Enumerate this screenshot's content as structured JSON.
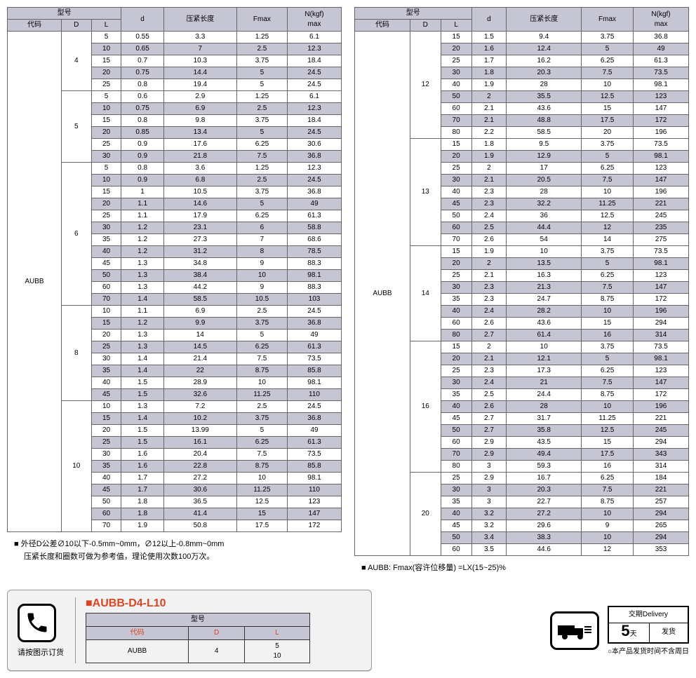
{
  "headers": {
    "model": "型号",
    "code": "代码",
    "D": "D",
    "L": "L",
    "d": "d",
    "compress": "压紧长度",
    "fmax": "Fmax",
    "nkgf": "N(kgf)\nmax"
  },
  "code_left": "AUBB",
  "code_right": "AUBB",
  "left_groups": [
    {
      "D": "4",
      "rows": [
        [
          "5",
          "0.55",
          "3.3",
          "1.25",
          "6.1"
        ],
        [
          "10",
          "0.65",
          "7",
          "2.5",
          "12.3"
        ],
        [
          "15",
          "0.7",
          "10.3",
          "3.75",
          "18.4"
        ],
        [
          "20",
          "0.75",
          "14.4",
          "5",
          "24.5"
        ],
        [
          "25",
          "0.8",
          "19.4",
          "5",
          "24.5"
        ]
      ]
    },
    {
      "D": "5",
      "rows": [
        [
          "5",
          "0.6",
          "2.9",
          "1.25",
          "6.1"
        ],
        [
          "10",
          "0.75",
          "6.9",
          "2.5",
          "12.3"
        ],
        [
          "15",
          "0.8",
          "9.8",
          "3.75",
          "18.4"
        ],
        [
          "20",
          "0.85",
          "13.4",
          "5",
          "24.5"
        ],
        [
          "25",
          "0.9",
          "17.6",
          "6.25",
          "30.6"
        ],
        [
          "30",
          "0.9",
          "21.8",
          "7.5",
          "36.8"
        ]
      ]
    },
    {
      "D": "6",
      "rows": [
        [
          "5",
          "0.8",
          "3.6",
          "1.25",
          "12.3"
        ],
        [
          "10",
          "0.9",
          "6.8",
          "2.5",
          "24.5"
        ],
        [
          "15",
          "1",
          "10.5",
          "3.75",
          "36.8"
        ],
        [
          "20",
          "1.1",
          "14.6",
          "5",
          "49"
        ],
        [
          "25",
          "1.1",
          "17.9",
          "6.25",
          "61.3"
        ],
        [
          "30",
          "1.2",
          "23.1",
          "6",
          "58.8"
        ],
        [
          "35",
          "1.2",
          "27.3",
          "7",
          "68.6"
        ],
        [
          "40",
          "1.2",
          "31.2",
          "8",
          "78.5"
        ],
        [
          "45",
          "1.3",
          "34.8",
          "9",
          "88.3"
        ],
        [
          "50",
          "1.3",
          "38.4",
          "10",
          "98.1"
        ],
        [
          "60",
          "1.3",
          "44.2",
          "9",
          "88.3"
        ],
        [
          "70",
          "1.4",
          "58.5",
          "10.5",
          "103"
        ]
      ]
    },
    {
      "D": "8",
      "rows": [
        [
          "10",
          "1.1",
          "6.9",
          "2.5",
          "24.5"
        ],
        [
          "15",
          "1.2",
          "9.9",
          "3.75",
          "36.8"
        ],
        [
          "20",
          "1.3",
          "14",
          "5",
          "49"
        ],
        [
          "25",
          "1.3",
          "14.5",
          "6.25",
          "61.3"
        ],
        [
          "30",
          "1.4",
          "21.4",
          "7.5",
          "73.5"
        ],
        [
          "35",
          "1.4",
          "22",
          "8.75",
          "85.8"
        ],
        [
          "40",
          "1.5",
          "28.9",
          "10",
          "98.1"
        ],
        [
          "45",
          "1.5",
          "32.6",
          "11.25",
          "110"
        ]
      ]
    },
    {
      "D": "10",
      "rows": [
        [
          "10",
          "1.3",
          "7.2",
          "2.5",
          "24.5"
        ],
        [
          "15",
          "1.4",
          "10.2",
          "3.75",
          "36.8"
        ],
        [
          "20",
          "1.5",
          "13.99",
          "5",
          "49"
        ],
        [
          "25",
          "1.5",
          "16.1",
          "6.25",
          "61.3"
        ],
        [
          "30",
          "1.6",
          "20.4",
          "7.5",
          "73.5"
        ],
        [
          "35",
          "1.6",
          "22.8",
          "8.75",
          "85.8"
        ],
        [
          "40",
          "1.7",
          "27.2",
          "10",
          "98.1"
        ],
        [
          "45",
          "1.7",
          "30.6",
          "11.25",
          "110"
        ],
        [
          "50",
          "1.8",
          "36.5",
          "12.5",
          "123"
        ],
        [
          "60",
          "1.8",
          "41.4",
          "15",
          "147"
        ],
        [
          "70",
          "1.9",
          "50.8",
          "17.5",
          "172"
        ]
      ]
    }
  ],
  "right_groups": [
    {
      "D": "12",
      "rows": [
        [
          "15",
          "1.5",
          "9.4",
          "3.75",
          "36.8"
        ],
        [
          "20",
          "1.6",
          "12.4",
          "5",
          "49"
        ],
        [
          "25",
          "1.7",
          "16.2",
          "6.25",
          "61.3"
        ],
        [
          "30",
          "1.8",
          "20.3",
          "7.5",
          "73.5"
        ],
        [
          "40",
          "1.9",
          "28",
          "10",
          "98.1"
        ],
        [
          "50",
          "2",
          "35.5",
          "12.5",
          "123"
        ],
        [
          "60",
          "2.1",
          "43.6",
          "15",
          "147"
        ],
        [
          "70",
          "2.1",
          "48.8",
          "17.5",
          "172"
        ],
        [
          "80",
          "2.2",
          "58.5",
          "20",
          "196"
        ]
      ]
    },
    {
      "D": "13",
      "rows": [
        [
          "15",
          "1.8",
          "9.5",
          "3.75",
          "73.5"
        ],
        [
          "20",
          "1.9",
          "12.9",
          "5",
          "98.1"
        ],
        [
          "25",
          "2",
          "17",
          "6.25",
          "123"
        ],
        [
          "30",
          "2.1",
          "20.5",
          "7.5",
          "147"
        ],
        [
          "40",
          "2.3",
          "28",
          "10",
          "196"
        ],
        [
          "45",
          "2.3",
          "32.2",
          "11.25",
          "221"
        ],
        [
          "50",
          "2.4",
          "36",
          "12.5",
          "245"
        ],
        [
          "60",
          "2.5",
          "44.4",
          "12",
          "235"
        ],
        [
          "70",
          "2.6",
          "54",
          "14",
          "275"
        ]
      ]
    },
    {
      "D": "14",
      "rows": [
        [
          "15",
          "1.9",
          "10",
          "3.75",
          "73.5"
        ],
        [
          "20",
          "2",
          "13.5",
          "5",
          "98.1"
        ],
        [
          "25",
          "2.1",
          "16.3",
          "6.25",
          "123"
        ],
        [
          "30",
          "2.3",
          "21.3",
          "7.5",
          "147"
        ],
        [
          "35",
          "2.3",
          "24.7",
          "8.75",
          "172"
        ],
        [
          "40",
          "2.4",
          "28.2",
          "10",
          "196"
        ],
        [
          "60",
          "2.6",
          "43.6",
          "15",
          "294"
        ],
        [
          "80",
          "2.7",
          "61.4",
          "16",
          "314"
        ]
      ]
    },
    {
      "D": "16",
      "rows": [
        [
          "15",
          "2",
          "10",
          "3.75",
          "73.5"
        ],
        [
          "20",
          "2.1",
          "12.1",
          "5",
          "98.1"
        ],
        [
          "25",
          "2.3",
          "17.3",
          "6.25",
          "123"
        ],
        [
          "30",
          "2.4",
          "21",
          "7.5",
          "147"
        ],
        [
          "35",
          "2.5",
          "24.4",
          "8.75",
          "172"
        ],
        [
          "40",
          "2.6",
          "28",
          "10",
          "196"
        ],
        [
          "45",
          "2.7",
          "31.7",
          "11.25",
          "221"
        ],
        [
          "50",
          "2.7",
          "35.8",
          "12.5",
          "245"
        ],
        [
          "60",
          "2.9",
          "43.5",
          "15",
          "294"
        ],
        [
          "70",
          "2.9",
          "49.4",
          "17.5",
          "343"
        ],
        [
          "80",
          "3",
          "59.3",
          "16",
          "314"
        ]
      ]
    },
    {
      "D": "20",
      "rows": [
        [
          "25",
          "2.9",
          "16.7",
          "6.25",
          "184"
        ],
        [
          "30",
          "3",
          "20.3",
          "7.5",
          "221"
        ],
        [
          "35",
          "3",
          "22.7",
          "8.75",
          "257"
        ],
        [
          "40",
          "3.2",
          "27.2",
          "10",
          "294"
        ],
        [
          "45",
          "3.2",
          "29.6",
          "9",
          "265"
        ],
        [
          "50",
          "3.4",
          "38.3",
          "10",
          "294"
        ],
        [
          "60",
          "3.5",
          "44.6",
          "12",
          "353"
        ]
      ]
    }
  ],
  "note_left_1": "■ 外径D公差∅10以下-0.5mm~0mm，∅12以上-0.8mm~0mm",
  "note_left_2": "　 压紧长度和圈数可做为参考值，理论使用次数100万次。",
  "note_right": "■ AUBB:   Fmax(容许位移量) =LX(15~25)%",
  "order": {
    "title": "AUBB-D4-L10",
    "prefix": "■",
    "model_hdr": "型号",
    "code_hdr": "代码",
    "D_hdr": "D",
    "L_hdr": "L",
    "code_val": "AUBB",
    "D_val": "4",
    "L_val1": "5",
    "L_val2": "10",
    "note": "请按图示订货"
  },
  "delivery": {
    "hdr": "交期Delivery",
    "days": "5",
    "days_unit": "天",
    "ship": "发货",
    "foot": "○本产品发货时间不含周日"
  }
}
